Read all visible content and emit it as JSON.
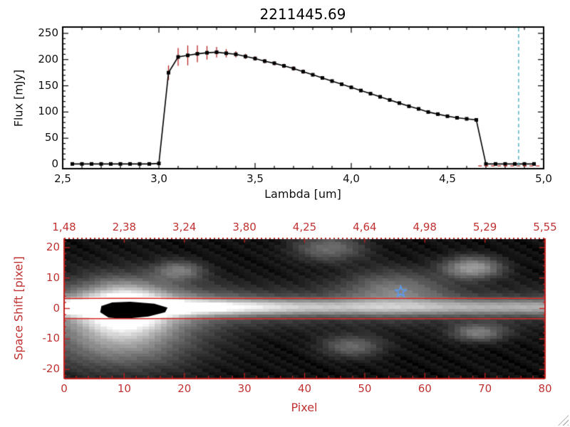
{
  "title": "2211445.69",
  "colors": {
    "background": "#ffffff",
    "axis_black": "#000000",
    "axis_red": "#c02020",
    "label_red": "#c03232",
    "error_red": "#b52222",
    "dashed_cyan": "#3fa8bc",
    "dashed_red": "#c02020",
    "star_blue": "#5b9bf0",
    "aperture_red": "#d92b2b",
    "marker_black": "#000000"
  },
  "chart_data": [
    {
      "id": "spectrum",
      "type": "line",
      "title": "2211445.69",
      "xlabel": "Lambda [um]",
      "ylabel": "Flux [mJy]",
      "xlim": [
        2.5,
        5.0
      ],
      "ylim": [
        0,
        250
      ],
      "grid": false,
      "marker": "filled-square",
      "xtick_values": [
        2.5,
        3.0,
        3.5,
        4.0,
        4.5,
        5.0
      ],
      "xtick_labels": [
        "2,5",
        "3,0",
        "3,5",
        "4,0",
        "4,5",
        "5,0"
      ],
      "ytick_values": [
        0,
        50,
        100,
        150,
        200,
        250
      ],
      "ytick_labels": [
        "0",
        "50",
        "100",
        "150",
        "200",
        "250"
      ],
      "x": [
        2.55,
        2.6,
        2.65,
        2.7,
        2.75,
        2.8,
        2.85,
        2.9,
        2.95,
        3.0,
        3.05,
        3.1,
        3.15,
        3.2,
        3.25,
        3.3,
        3.35,
        3.4,
        3.45,
        3.5,
        3.55,
        3.6,
        3.65,
        3.7,
        3.75,
        3.8,
        3.85,
        3.9,
        3.95,
        4.0,
        4.05,
        4.1,
        4.15,
        4.2,
        4.25,
        4.3,
        4.35,
        4.4,
        4.45,
        4.5,
        4.55,
        4.6,
        4.65,
        4.7,
        4.75,
        4.8,
        4.85,
        4.9,
        4.95
      ],
      "y": [
        1,
        1,
        1,
        1,
        1,
        1,
        1,
        1,
        1,
        2,
        175,
        205,
        208,
        211,
        213,
        214,
        212,
        210,
        206,
        202,
        197,
        193,
        188,
        183,
        177,
        171,
        165,
        159,
        153,
        147,
        141,
        135,
        129,
        123,
        117,
        111,
        106,
        100,
        96,
        92,
        89,
        87,
        85,
        1,
        1,
        1,
        1,
        1,
        1
      ],
      "yerr": [
        1,
        1,
        1,
        1,
        1,
        1,
        1,
        1,
        1,
        1,
        14,
        17,
        19,
        16,
        13,
        10,
        8,
        6,
        5,
        4,
        4,
        4,
        4,
        4,
        4,
        3,
        3,
        3,
        3,
        3,
        3,
        3,
        3,
        3,
        3,
        3,
        3,
        3,
        3,
        3,
        3,
        3,
        3,
        1,
        1,
        1,
        1,
        1,
        1
      ],
      "vline_x": 4.87,
      "zero_dashed_segment": {
        "x0": 4.66,
        "x1": 4.99,
        "y": 0
      }
    },
    {
      "id": "spatial-image",
      "type": "heatmap",
      "xlabel": "Pixel",
      "ylabel": "Space Shift [pixel]",
      "xlim": [
        0,
        80
      ],
      "ylim": [
        -23,
        23
      ],
      "xtick_values": [
        0,
        10,
        20,
        30,
        40,
        50,
        60,
        70,
        80
      ],
      "xtick_labels": [
        "0",
        "10",
        "20",
        "30",
        "40",
        "50",
        "60",
        "70",
        "80"
      ],
      "ytick_values": [
        20,
        10,
        0,
        -10,
        -20
      ],
      "ytick_labels": [
        "20",
        "10",
        "0",
        "-10",
        "-20"
      ],
      "top_axis_labels": [
        "1,48",
        "2,38",
        "3,24",
        "3,80",
        "4,25",
        "4,64",
        "4,98",
        "5,29",
        "5,55"
      ],
      "aperture_lines": [
        3.3,
        -3.3
      ],
      "star": {
        "x": 56,
        "y": 5.5
      },
      "trace": {
        "y_center": 0.5,
        "sigma": 1.7,
        "base_amp": 0.45,
        "peak_amp": 0.55,
        "peak_x": 11,
        "peak_sigma": 16
      },
      "blobs": [
        {
          "x": 10,
          "y": -0.5,
          "sx": 4.5,
          "sy": 5.5,
          "amp": 0.85
        },
        {
          "x": 10,
          "y": -2.0,
          "sx": 9.0,
          "sy": 8.0,
          "amp": 0.3
        },
        {
          "x": 19,
          "y": 12.5,
          "sx": 2.8,
          "sy": 2.2,
          "amp": 0.33
        },
        {
          "x": 44,
          "y": 20.0,
          "sx": 4.0,
          "sy": 3.0,
          "amp": 0.3
        },
        {
          "x": 55,
          "y": 6.0,
          "sx": 6.0,
          "sy": 4.5,
          "amp": 0.32
        },
        {
          "x": 68,
          "y": 13.5,
          "sx": 3.2,
          "sy": 2.4,
          "amp": 0.5
        },
        {
          "x": 69,
          "y": -8.0,
          "sx": 3.0,
          "sy": 2.0,
          "amp": 0.35
        },
        {
          "x": 48,
          "y": -12.5,
          "sx": 3.5,
          "sy": 2.5,
          "amp": 0.28
        },
        {
          "x": 9,
          "y": -12.0,
          "sx": 8.0,
          "sy": 6.0,
          "amp": 0.3
        }
      ],
      "mask_polygon": [
        [
          6.2,
          0.8
        ],
        [
          8,
          2.0
        ],
        [
          11,
          2.2
        ],
        [
          15,
          1.6
        ],
        [
          17.2,
          0.3
        ],
        [
          16.8,
          -1.2
        ],
        [
          14,
          -2.6
        ],
        [
          10,
          -3.4
        ],
        [
          7.4,
          -3.0
        ],
        [
          6.0,
          -1.2
        ]
      ]
    }
  ]
}
